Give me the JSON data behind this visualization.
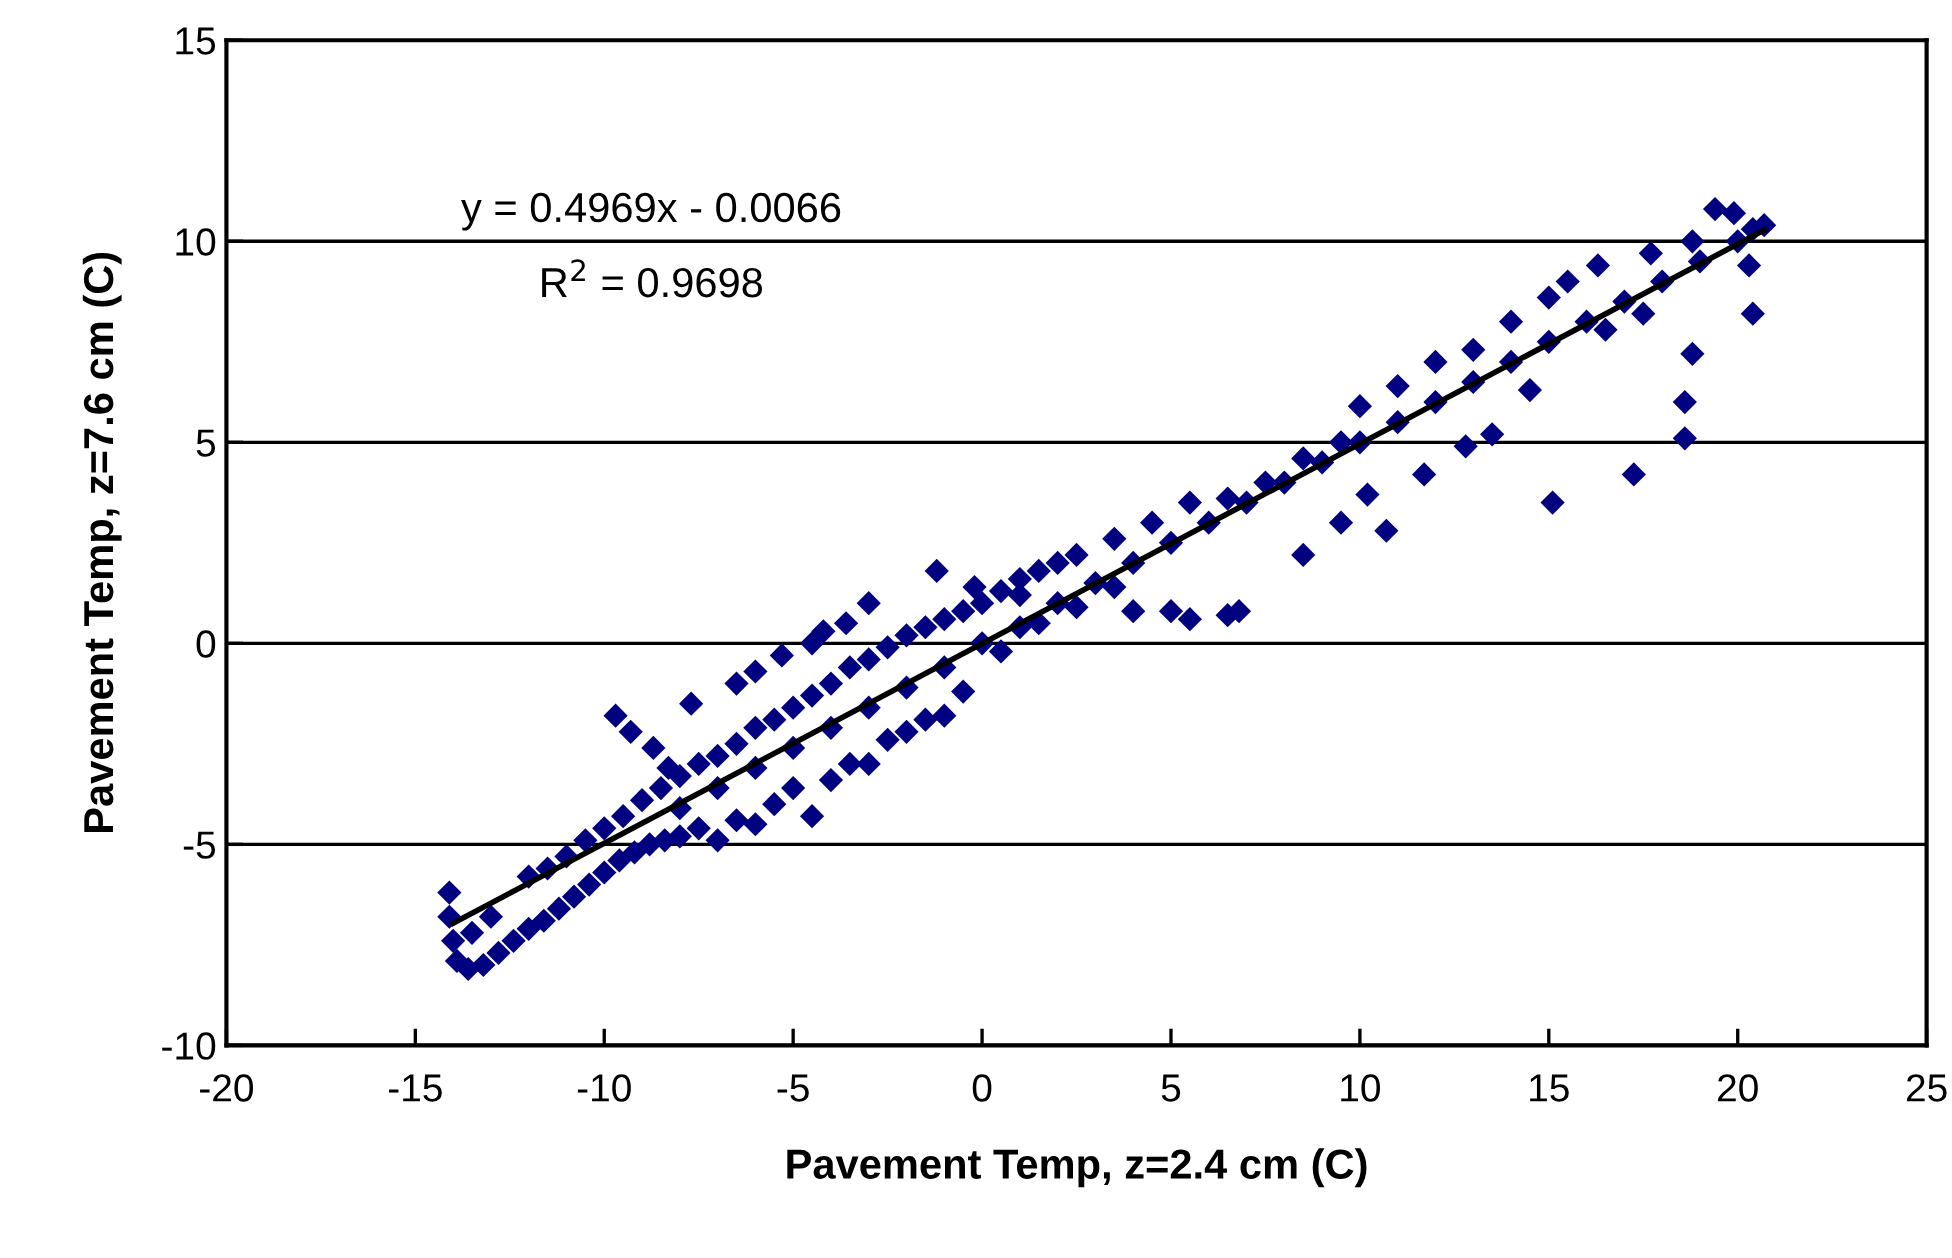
{
  "chart_data": {
    "type": "scatter",
    "xlabel": "Pavement Temp, z=2.4 cm (C)",
    "ylabel": "Pavement Temp, z=7.6 cm (C)",
    "annotations": [
      "y = 0.4969x - 0.0066",
      "R$^{2}$ = 0.9698"
    ],
    "xlim": [
      -20,
      25
    ],
    "xticks": [
      -20,
      -15,
      -10,
      -5,
      0,
      5,
      10,
      15,
      20,
      25
    ],
    "ylim": [
      -10,
      15
    ],
    "yticks": [
      -10,
      -5,
      0,
      5,
      10,
      15
    ],
    "grid": "y",
    "series": [
      {
        "color": "#000080",
        "marker": "diamond",
        "x": [
          -14.1,
          -14.1,
          -14.0,
          -13.9,
          -13.6,
          -13.2,
          -12.8,
          -12.4,
          -12.0,
          -11.6,
          -11.2,
          -10.8,
          -10.4,
          -10.0,
          -9.6,
          -9.2,
          -8.8,
          -8.4,
          -8.0,
          -7.5,
          -7.0,
          -6.5,
          -6.0,
          -5.5,
          -5.0,
          -4.5,
          -4.0,
          -3.5,
          -3.0,
          -2.5,
          -2.0,
          -1.5,
          -1.0,
          -0.5,
          -13.5,
          -13.0,
          -12.0,
          -11.5,
          -11.0,
          -10.5,
          -10.0,
          -9.5,
          -9.0,
          -8.5,
          -8.0,
          -7.5,
          -7.0,
          -6.5,
          -6.0,
          -5.5,
          -5.0,
          -4.5,
          -4.0,
          -3.5,
          -3.0,
          -2.5,
          -2.0,
          -1.5,
          -1.0,
          -0.5,
          0.0,
          0.5,
          1.0,
          1.5,
          2.0,
          -9.7,
          -9.3,
          -8.7,
          -8.3,
          -7.7,
          -6.5,
          -6.0,
          -5.3,
          -4.5,
          -4.2,
          -3.6,
          -3.0,
          -1.2,
          -0.2,
          -8.0,
          -7.0,
          -6.0,
          -5.0,
          -4.0,
          -3.0,
          -2.0,
          -1.0,
          0.0,
          1.0,
          2.0,
          3.0,
          4.0,
          5.0,
          6.0,
          7.0,
          8.0,
          9.0,
          10.0,
          11.0,
          12.0,
          13.0,
          14.0,
          15.0,
          16.0,
          17.0,
          18.0,
          19.0,
          20.0,
          1.0,
          2.5,
          3.5,
          4.5,
          5.5,
          6.5,
          7.5,
          8.5,
          9.5,
          10.0,
          11.0,
          12.0,
          13.0,
          14.0,
          15.0,
          15.5,
          16.3,
          17.7,
          18.8,
          19.4,
          19.9,
          20.4,
          20.7,
          0.5,
          1.5,
          2.5,
          3.5,
          4.0,
          5.0,
          5.5,
          6.5,
          6.8,
          8.5,
          9.5,
          10.2,
          10.7,
          11.7,
          12.8,
          13.5,
          14.5,
          15.1,
          16.5,
          17.25,
          17.5,
          18.6,
          18.6,
          18.8,
          20.4,
          20.3
        ],
        "values": [
          -6.2,
          -6.8,
          -7.4,
          -7.9,
          -8.1,
          -8.0,
          -7.7,
          -7.4,
          -7.1,
          -6.9,
          -6.6,
          -6.3,
          -6.0,
          -5.7,
          -5.4,
          -5.2,
          -5.0,
          -4.9,
          -4.8,
          -4.6,
          -4.9,
          -4.4,
          -4.5,
          -4.0,
          -3.6,
          -4.3,
          -3.4,
          -3.0,
          -3.0,
          -2.4,
          -2.2,
          -1.9,
          -1.8,
          -1.2,
          -7.2,
          -6.8,
          -5.8,
          -5.6,
          -5.3,
          -4.9,
          -4.6,
          -4.3,
          -3.9,
          -3.6,
          -3.3,
          -3.0,
          -2.8,
          -2.5,
          -2.1,
          -1.9,
          -1.6,
          -1.3,
          -1.0,
          -0.6,
          -0.4,
          -0.1,
          0.2,
          0.4,
          0.6,
          0.8,
          1.0,
          1.3,
          1.6,
          1.8,
          2.0,
          -1.8,
          -2.2,
          -2.6,
          -3.1,
          -1.5,
          -1.0,
          -0.7,
          -0.3,
          0.0,
          0.3,
          0.5,
          1.0,
          1.8,
          1.4,
          -4.1,
          -3.6,
          -3.1,
          -2.6,
          -2.1,
          -1.6,
          -1.1,
          -0.6,
          0.0,
          0.4,
          1.0,
          1.5,
          2.0,
          2.5,
          3.0,
          3.5,
          4.0,
          4.5,
          5.0,
          5.5,
          6.0,
          6.5,
          7.0,
          7.5,
          8.0,
          8.5,
          9.0,
          9.5,
          10.0,
          1.2,
          2.2,
          2.6,
          3.0,
          3.5,
          3.6,
          4.0,
          4.6,
          5.0,
          5.9,
          6.4,
          7.0,
          7.3,
          8.0,
          8.6,
          9.0,
          9.4,
          9.7,
          10.0,
          10.8,
          10.7,
          10.3,
          10.4,
          -0.2,
          0.5,
          0.9,
          1.4,
          0.8,
          0.8,
          0.6,
          0.7,
          0.8,
          2.2,
          3.0,
          3.7,
          2.8,
          4.2,
          4.9,
          5.2,
          6.3,
          3.5,
          7.8,
          4.2,
          8.2,
          5.1,
          6.0,
          7.2,
          8.2,
          9.4
        ]
      },
      {
        "type": "line",
        "color": "#000000",
        "marker": "none",
        "line_style": "solid",
        "x": [
          -14.0,
          20.7
        ],
        "values": [
          -6.96,
          10.28
        ]
      }
    ]
  }
}
